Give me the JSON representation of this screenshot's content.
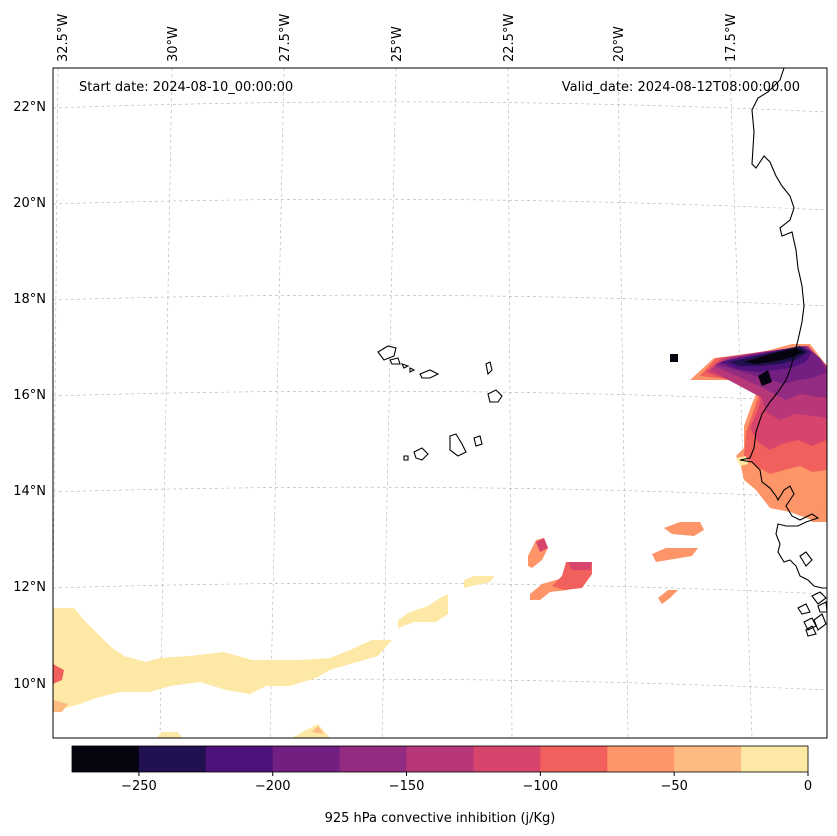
{
  "header": {
    "start_date": "Start date: 2024-08-10_00:00:00",
    "valid_date": "Valid_date: 2024-08-12T08:00:00.00"
  },
  "axes": {
    "lon_labels": [
      "32.5°W",
      "30°W",
      "27.5°W",
      "25°W",
      "22.5°W",
      "20°W",
      "17.5°W"
    ],
    "lat_labels": [
      "22°N",
      "20°N",
      "18°N",
      "16°N",
      "14°N",
      "12°N",
      "10°N"
    ]
  },
  "colorbar": {
    "label": "925 hPa convective inhibition (j/Kg)",
    "ticks": [
      "−250",
      "−200",
      "−150",
      "−100",
      "−50",
      "0"
    ],
    "tick_values": [
      -250,
      -200,
      -150,
      -100,
      -50,
      0
    ],
    "range": [
      -275,
      0
    ],
    "step": 25,
    "colors": [
      "#05040f",
      "#221150",
      "#4f127b",
      "#721f81",
      "#932b80",
      "#b73779",
      "#d8456c",
      "#f1605d",
      "#fd9568",
      "#febb81",
      "#fde8a5"
    ]
  }
}
